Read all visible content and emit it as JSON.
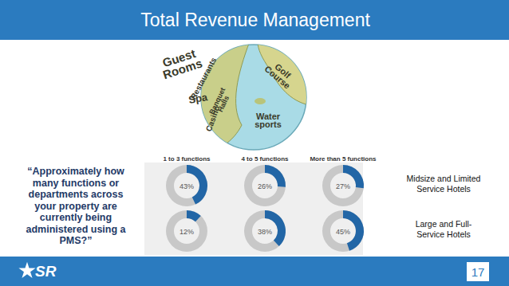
{
  "slide": {
    "title": "Total Revenue Management",
    "question": "“Approximately how many functions or departments across your property are currently being administered using a PMS?”",
    "globe_labels": [
      "Guest Rooms",
      "Restaurants",
      "Spa",
      "Banquet Halls",
      "Casino",
      "Golf Course",
      "Water sports"
    ],
    "logo": "SR",
    "page_number": "17"
  },
  "chart_data": {
    "type": "donut",
    "categories": [
      "1 to 3 functions",
      "4 to 5 functions",
      "More than 5 functions"
    ],
    "series": [
      {
        "name": "Midsize and Limited Service Hotels",
        "color": "#2266a6",
        "values": [
          43,
          26,
          27
        ],
        "value_labels": [
          "43%",
          "26%",
          "27%"
        ]
      },
      {
        "name": "Large and Full-Service Hotels",
        "color": "#2266a6",
        "values": [
          12,
          38,
          45
        ],
        "value_labels": [
          "12%",
          "38%",
          "45%"
        ]
      }
    ],
    "ylim": [
      0,
      100
    ],
    "tick_labels": false,
    "data_labels": true
  }
}
